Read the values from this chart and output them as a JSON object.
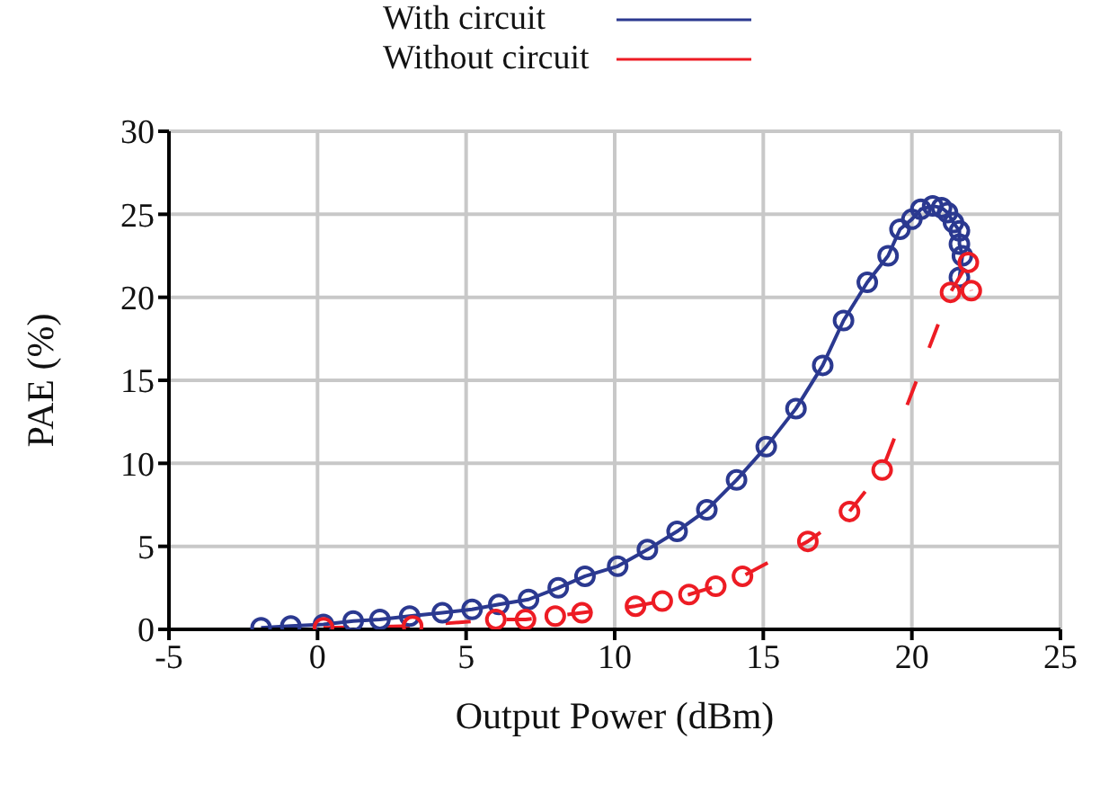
{
  "chart_data": {
    "type": "line",
    "xlabel": "Output Power (dBm)",
    "ylabel": "PAE (%)",
    "xlim": [
      -5,
      25
    ],
    "xticks": [
      {
        "value": -5,
        "label": "-5"
      },
      0,
      5,
      10,
      15,
      20,
      25
    ],
    "ylim": [
      0,
      30
    ],
    "yticks": [
      0,
      5,
      10,
      15,
      20,
      25,
      30
    ],
    "grid": true,
    "legend": "top",
    "marker": "circle",
    "series": [
      {
        "name": "With circuit",
        "color": "#2b3990",
        "line_style": "solid",
        "x": [
          -1.9,
          -0.9,
          0.2,
          1.2,
          2.1,
          3.1,
          4.2,
          5.2,
          6.1,
          7.1,
          8.1,
          9.0,
          10.1,
          11.1,
          12.1,
          13.1,
          14.1,
          15.1,
          16.1,
          17.0,
          17.7,
          18.5,
          19.2,
          19.6,
          20.0,
          20.3,
          20.7,
          21.0,
          21.2,
          21.4,
          21.6,
          21.6,
          21.7,
          21.6
        ],
        "values": [
          0.1,
          0.2,
          0.3,
          0.5,
          0.6,
          0.8,
          1.0,
          1.2,
          1.5,
          1.8,
          2.5,
          3.2,
          3.8,
          4.8,
          5.9,
          7.2,
          9.0,
          11.0,
          13.3,
          15.9,
          18.6,
          20.9,
          22.5,
          24.1,
          24.7,
          25.3,
          25.5,
          25.4,
          25.1,
          24.5,
          24.0,
          23.2,
          22.5,
          21.2
        ]
      },
      {
        "name": "Without circuit",
        "color": "#ed1c24",
        "line_style": "dashed",
        "x": [
          0.2,
          3.2,
          6.0,
          7.0,
          8.0,
          8.9,
          10.7,
          11.6,
          12.5,
          13.4,
          14.3,
          16.5,
          17.9,
          19.0,
          21.3,
          21.9,
          22.0
        ],
        "values": [
          0.1,
          0.2,
          0.6,
          0.6,
          0.8,
          1.0,
          1.4,
          1.7,
          2.1,
          2.6,
          3.2,
          5.3,
          7.1,
          9.6,
          20.3,
          22.1,
          20.4
        ]
      }
    ]
  }
}
